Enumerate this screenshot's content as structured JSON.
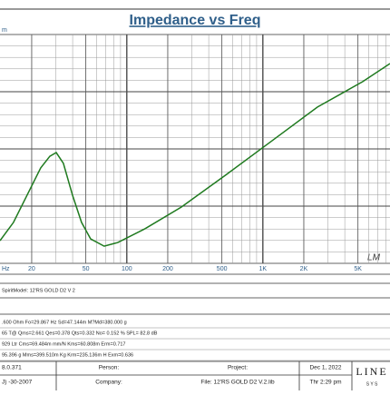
{
  "chart_data": {
    "type": "line",
    "title": "Impedance vs Freq",
    "y_unit_label": "m",
    "x_unit_label": "Hz",
    "x": [
      11.7,
      14.7,
      18.5,
      23.3,
      27.2,
      30.3,
      34.2,
      39.9,
      46.5,
      54.2,
      68.2,
      85.9,
      136,
      252,
      542,
      1170,
      2520,
      5420,
      8600
    ],
    "series": [
      {
        "name": "Impedance",
        "color": "#1f7a1f",
        "values": [
          9.9,
          17.9,
          29.8,
          41.7,
          46.8,
          48.4,
          43.7,
          29.8,
          17.9,
          10.7,
          7.5,
          9.1,
          15.1,
          24.6,
          38.9,
          53.6,
          68.3,
          79.4,
          87.3
        ]
      }
    ],
    "xlim": [
      11.7,
      8600
    ],
    "ylim": [
      0,
      100
    ],
    "log_x": true,
    "grid": true,
    "xticks": [
      {
        "value": 20,
        "label": "20"
      },
      {
        "value": 50,
        "label": "50"
      },
      {
        "value": 100,
        "label": "100"
      },
      {
        "value": 200,
        "label": "200"
      },
      {
        "value": 500,
        "label": "500"
      },
      {
        "value": 1000,
        "label": "1K"
      },
      {
        "value": 2000,
        "label": "2K"
      },
      {
        "value": 5000,
        "label": "5K"
      }
    ],
    "annotation": "LM"
  },
  "info": {
    "model": "SpiritModel: 12'RS GOLD D2 V 2",
    "params": [
      ".600 Ohm  Fo=29.867 Hz  Sd=47.144m  M?Md=380.000 g",
      "65 T@  Qms=2.661  Qes=0.378  Qts=0.332  No= 0.152 %  SPL= 82.8 dB",
      "929 Ltr  Cms=69.484m mm/N  Kms=60.808m  Erm=0.717",
      "95.396 g  Mms=399.510m Kg  Krm=235.136m H  Exm=0.636"
    ]
  },
  "footer": {
    "version": "8.0.371",
    "date_old": "J) -30-2007",
    "person": "Person:",
    "company": "Company:",
    "project": "Project:",
    "file": "File: 12'RS GOLD D2 V.2.lib",
    "date": "Dec  1, 2022",
    "time": "Thr  2:29 pm",
    "logo": "LINE",
    "logo_sub": "S Y S"
  }
}
